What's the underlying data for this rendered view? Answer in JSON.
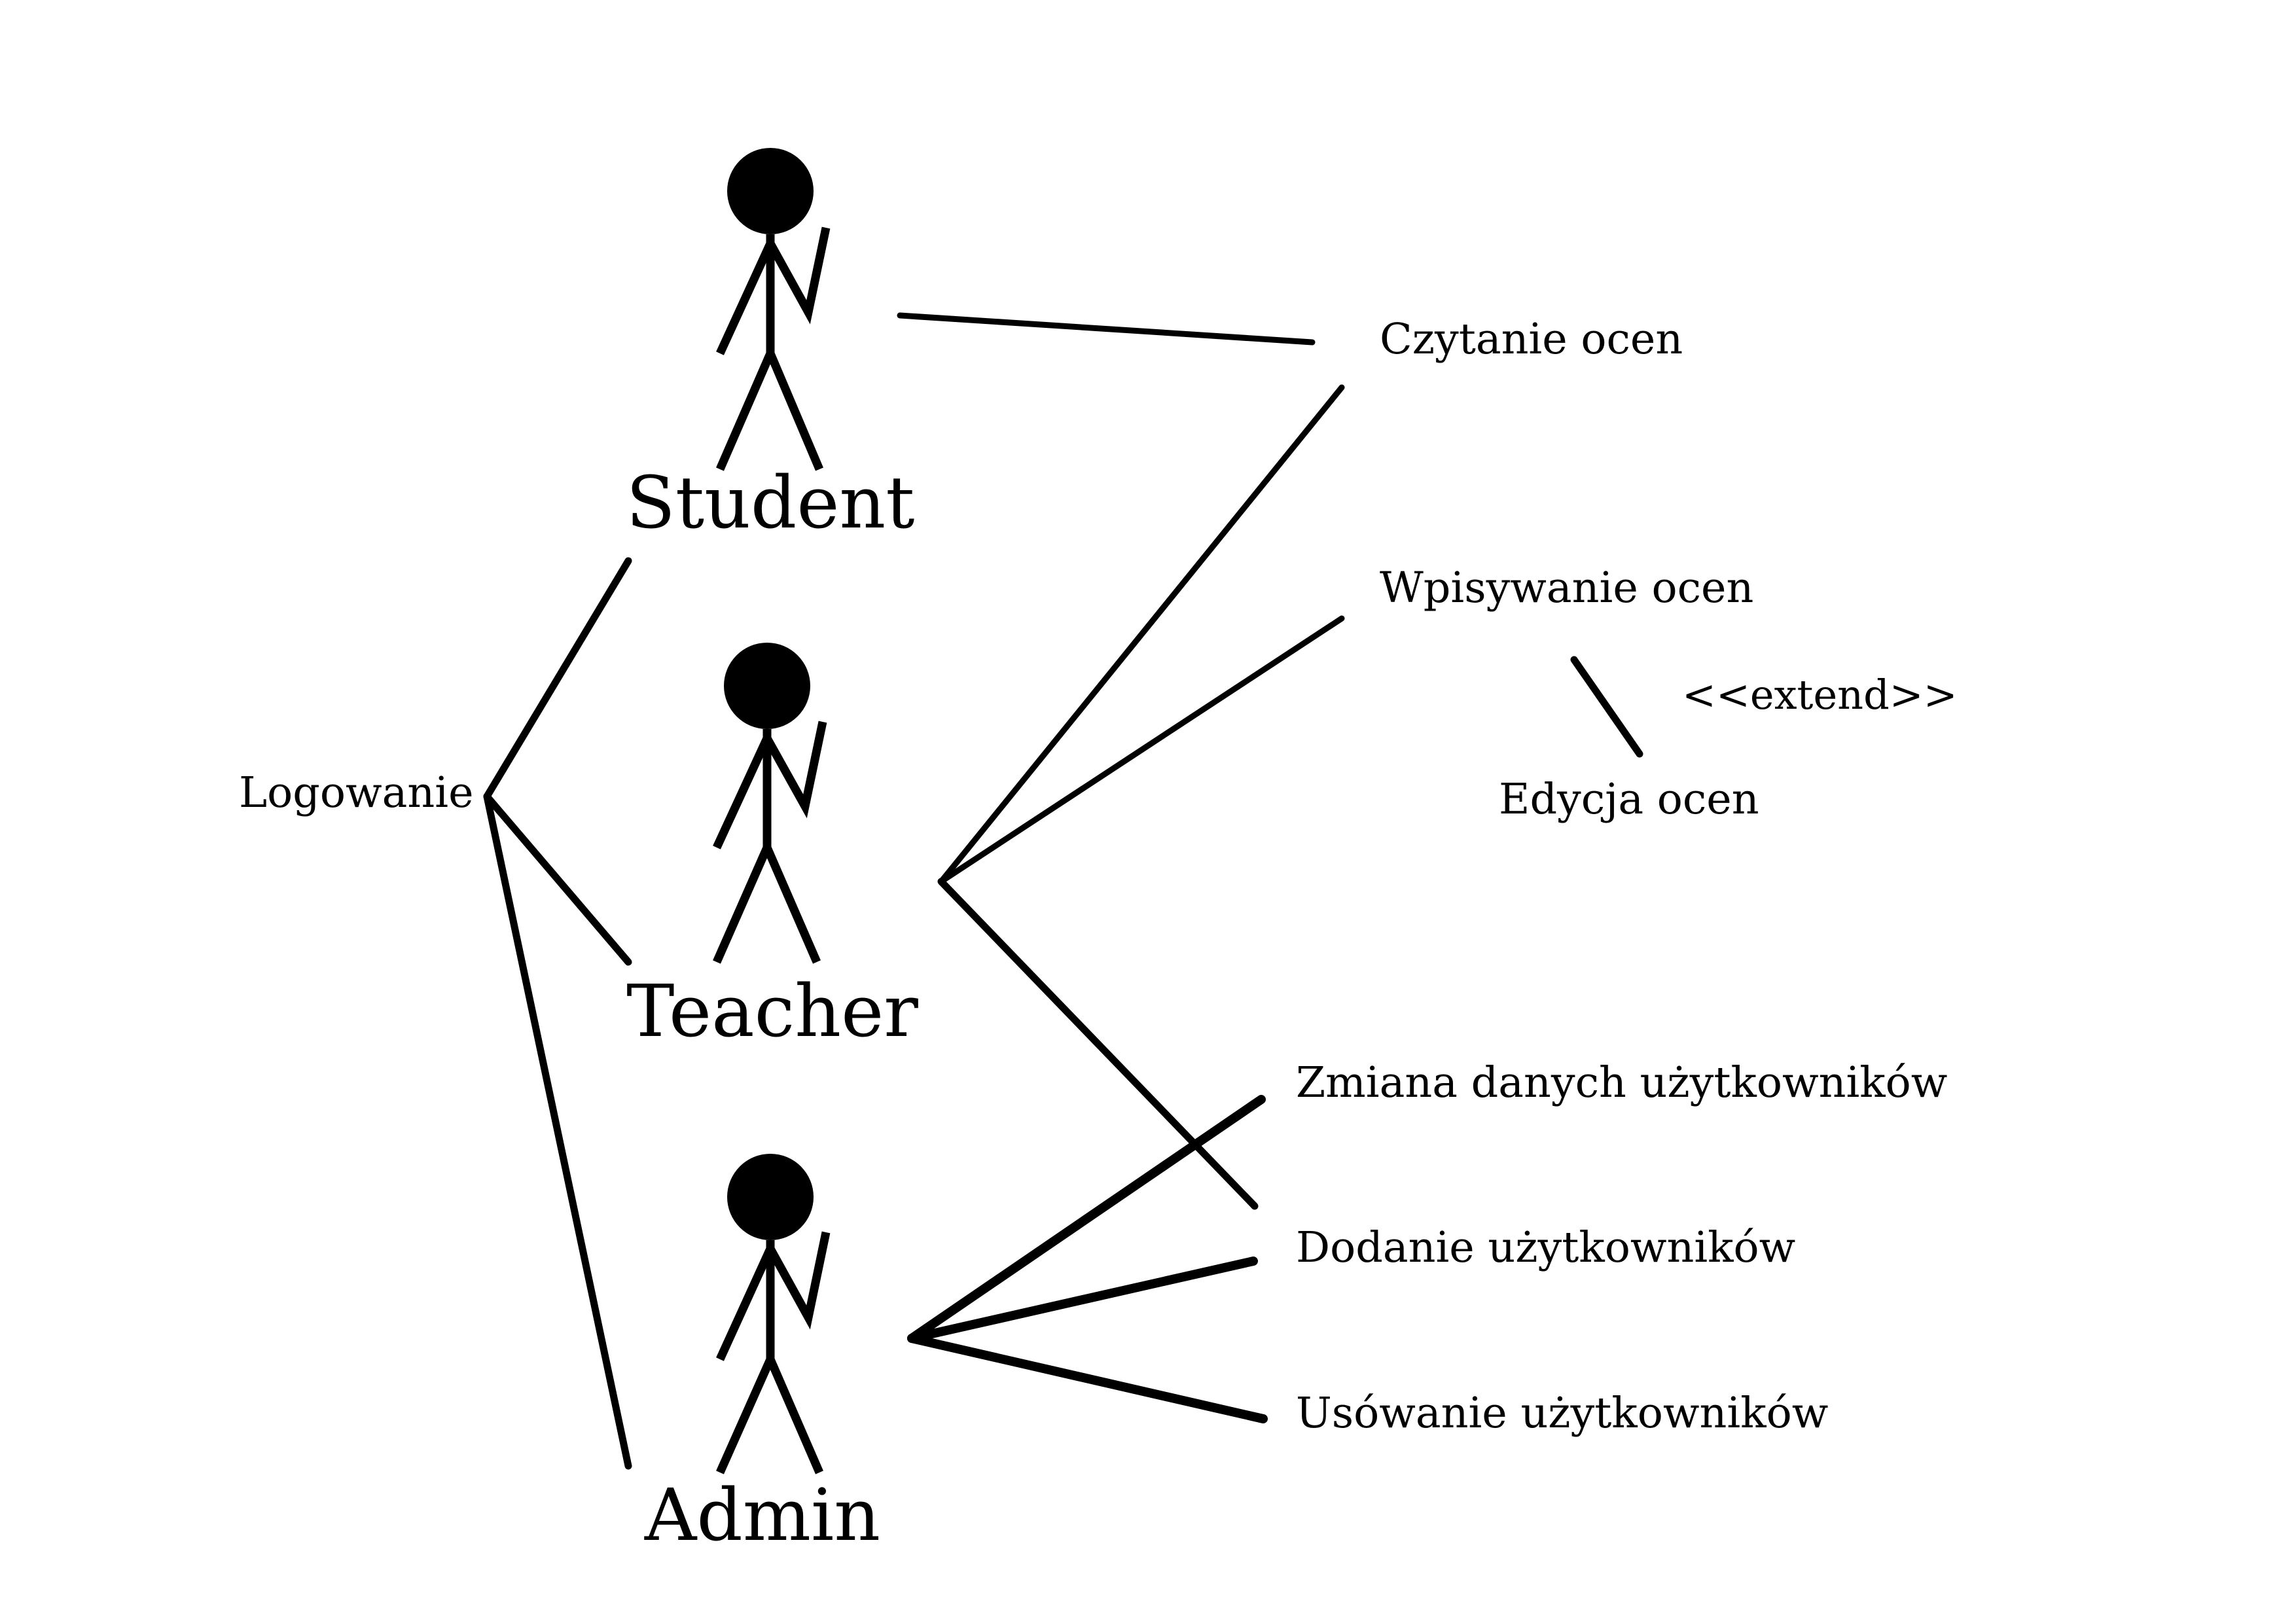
{
  "actors": {
    "student": "Student",
    "teacher": "Teacher",
    "admin": "Admin"
  },
  "use_cases": {
    "login": "Logowanie",
    "read_grades": "Czytanie ocen",
    "enter_grades": "Wpisywanie ocen",
    "edit_grades": "Edycja ocen",
    "change_user_data": "Zmiana danych użytkowników",
    "add_users": "Dodanie użytkowników",
    "remove_users": "Usówanie użytkowników"
  },
  "relations": {
    "extend_stereotype": "<<extend>>"
  },
  "colors": {
    "ink": "#000000",
    "background": "#ffffff"
  }
}
